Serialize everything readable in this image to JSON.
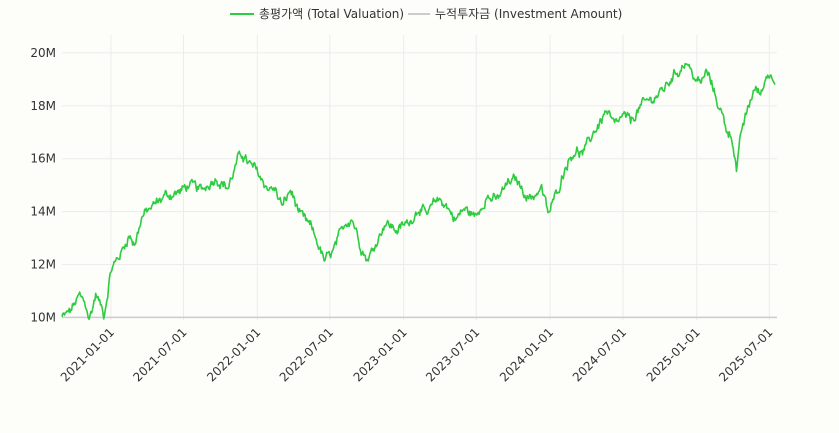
{
  "chart_data": {
    "type": "line",
    "legend_position": "top-center",
    "grid": true,
    "series": [
      {
        "name": "총평가액 (Total Valuation)",
        "color": "#2ecc40"
      },
      {
        "name": "누적투자금 (Investment Amount)",
        "color": "#cccccc"
      }
    ],
    "x_ticks": [
      "2021-01-01",
      "2021-07-01",
      "2022-01-01",
      "2022-07-01",
      "2023-01-01",
      "2023-07-01",
      "2024-01-01",
      "2024-07-01",
      "2025-01-01",
      "2025-07-01"
    ],
    "y_ticks": [
      "10M",
      "12M",
      "14M",
      "16M",
      "18M",
      "20M"
    ],
    "ylim": [
      9.9,
      20.3
    ],
    "xlim": [
      "2020-09-01",
      "2025-07-20"
    ],
    "total_valuation_anchors": [
      [
        "2020-09-01",
        10.0
      ],
      [
        "2020-09-20",
        10.2
      ],
      [
        "2020-10-15",
        10.8
      ],
      [
        "2020-11-01",
        10.4
      ],
      [
        "2020-11-08",
        9.9
      ],
      [
        "2020-11-25",
        10.9
      ],
      [
        "2020-12-15",
        10.1
      ],
      [
        "2021-01-01",
        11.8
      ],
      [
        "2021-01-25",
        12.4
      ],
      [
        "2021-02-15",
        13.1
      ],
      [
        "2021-03-01",
        12.8
      ],
      [
        "2021-03-20",
        13.8
      ],
      [
        "2021-04-15",
        14.2
      ],
      [
        "2021-05-15",
        14.6
      ],
      [
        "2021-06-15",
        14.7
      ],
      [
        "2021-07-15",
        15.0
      ],
      [
        "2021-08-15",
        14.8
      ],
      [
        "2021-09-20",
        15.3
      ],
      [
        "2021-10-20",
        14.9
      ],
      [
        "2021-11-15",
        16.0
      ],
      [
        "2021-11-25",
        16.2
      ],
      [
        "2021-12-10",
        15.8
      ],
      [
        "2022-01-01",
        15.5
      ],
      [
        "2022-01-20",
        15.0
      ],
      [
        "2022-02-15",
        14.8
      ],
      [
        "2022-03-05",
        14.2
      ],
      [
        "2022-03-25",
        14.8
      ],
      [
        "2022-04-20",
        13.8
      ],
      [
        "2022-05-15",
        13.4
      ],
      [
        "2022-06-01",
        12.8
      ],
      [
        "2022-06-18",
        12.1
      ],
      [
        "2022-07-10",
        12.5
      ],
      [
        "2022-08-10",
        13.6
      ],
      [
        "2022-08-25",
        13.8
      ],
      [
        "2022-09-15",
        12.8
      ],
      [
        "2022-10-01",
        12.2
      ],
      [
        "2022-10-15",
        12.5
      ],
      [
        "2022-11-15",
        13.6
      ],
      [
        "2022-12-15",
        13.3
      ],
      [
        "2023-01-15",
        13.6
      ],
      [
        "2023-02-10",
        14.2
      ],
      [
        "2023-03-01",
        13.8
      ],
      [
        "2023-03-25",
        14.5
      ],
      [
        "2023-04-15",
        14.3
      ],
      [
        "2023-05-10",
        13.7
      ],
      [
        "2023-06-01",
        14.1
      ],
      [
        "2023-07-01",
        13.8
      ],
      [
        "2023-07-25",
        14.6
      ],
      [
        "2023-08-20",
        14.4
      ],
      [
        "2023-09-20",
        15.1
      ],
      [
        "2023-10-10",
        15.2
      ],
      [
        "2023-10-25",
        14.8
      ],
      [
        "2023-11-15",
        14.5
      ],
      [
        "2023-12-10",
        14.9
      ],
      [
        "2023-12-28",
        13.9
      ],
      [
        "2024-01-20",
        14.8
      ],
      [
        "2024-02-10",
        15.8
      ],
      [
        "2024-03-01",
        16.3
      ],
      [
        "2024-03-25",
        16.2
      ],
      [
        "2024-04-15",
        16.9
      ],
      [
        "2024-05-01",
        17.3
      ],
      [
        "2024-05-20",
        17.8
      ],
      [
        "2024-06-10",
        17.2
      ],
      [
        "2024-07-01",
        17.6
      ],
      [
        "2024-07-20",
        17.4
      ],
      [
        "2024-08-10",
        17.9
      ],
      [
        "2024-08-25",
        18.1
      ],
      [
        "2024-09-15",
        18.3
      ],
      [
        "2024-10-10",
        18.6
      ],
      [
        "2024-11-01",
        19.1
      ],
      [
        "2024-11-20",
        19.4
      ],
      [
        "2024-12-05",
        19.7
      ],
      [
        "2024-12-20",
        19.2
      ],
      [
        "2025-01-10",
        18.8
      ],
      [
        "2025-01-25",
        19.3
      ],
      [
        "2025-02-10",
        18.7
      ],
      [
        "2025-02-25",
        18.0
      ],
      [
        "2025-03-15",
        17.2
      ],
      [
        "2025-04-01",
        16.7
      ],
      [
        "2025-04-10",
        15.6
      ],
      [
        "2025-04-25",
        17.2
      ],
      [
        "2025-05-10",
        17.9
      ],
      [
        "2025-05-25",
        18.7
      ],
      [
        "2025-06-10",
        18.4
      ],
      [
        "2025-06-25",
        19.2
      ],
      [
        "2025-07-15",
        19.1
      ]
    ],
    "investment_amount": [
      [
        "2020-09-01",
        10.0
      ],
      [
        "2025-07-20",
        10.0
      ]
    ]
  }
}
